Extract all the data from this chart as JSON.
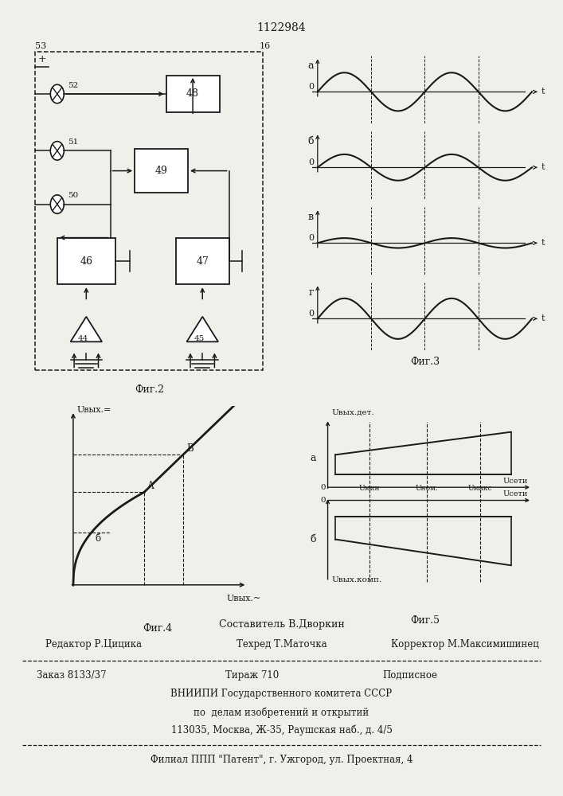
{
  "title": "1122984",
  "bg_color": "#f0efea",
  "line_color": "#1a1a1a",
  "fig2": {
    "caption": "Фиг.2"
  },
  "fig3": {
    "caption": "Фиг.3",
    "panel_labels": [
      "а",
      "б",
      "в",
      "г"
    ],
    "wave_amps": [
      0.85,
      0.6,
      0.22,
      0.9
    ],
    "wave_phases": [
      0.0,
      0.0,
      0.0,
      0.0
    ]
  },
  "fig4": {
    "caption": "Фиг.4",
    "ylabel": "Uвых.=",
    "xlabel": "Uвых.~"
  },
  "fig5": {
    "caption": "Фиг.5",
    "ylabel_top": "Uвых.дет.",
    "ylabel_bot": "Uвых.комп.",
    "xlabel_top": "Uсети",
    "xlabel_bot": "Uсети",
    "label_a": "а",
    "label_b": "б",
    "u_min": "Uмин",
    "u_nom": "Uном.",
    "u_max": "Uмакс"
  },
  "footer": {
    "line1": "Составитель В.Дворкин",
    "line2_left": "Редактор Р.Цицика",
    "line2_mid": "Техред Т.Маточка",
    "line2_right": "Корректор М.Максимишинец",
    "line3_left": "Заказ 8133/37",
    "line3_mid": "Тираж 710",
    "line3_right": "Подписное",
    "line4": "ВНИИПИ Государственного комитета СССР",
    "line5": "по  делам изобретений и открытий",
    "line6": "113035, Москва, Ж-35, Раушская наб., д. 4/5",
    "line7": "Филиал ППП \"Патент\", г. Ужгород, ул. Проектная, 4"
  }
}
